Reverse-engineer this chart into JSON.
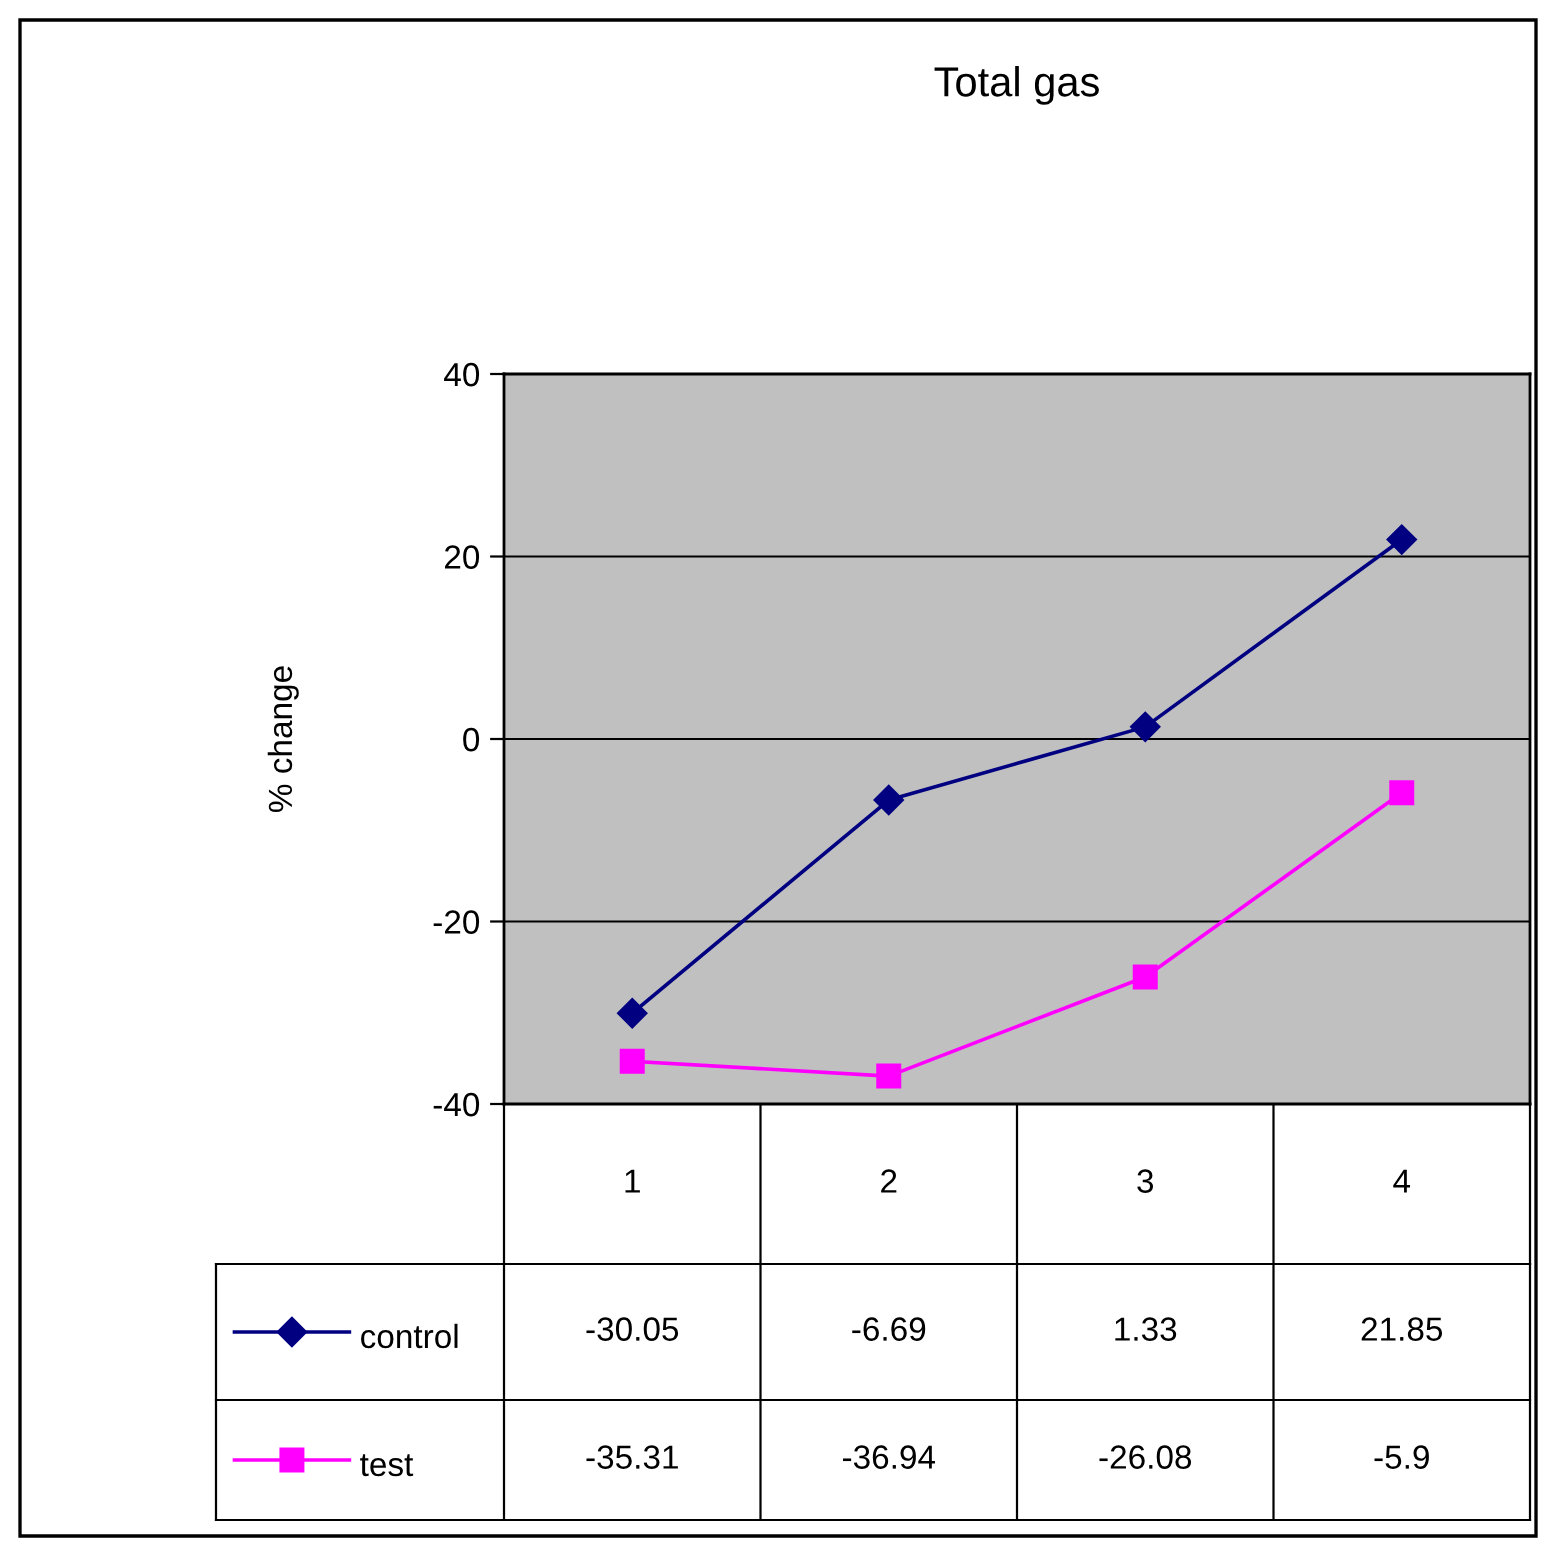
{
  "chart_data": {
    "type": "line",
    "title": "Total gas",
    "ylabel": "% change",
    "categories": [
      "1",
      "2",
      "3",
      "4"
    ],
    "series": [
      {
        "name": "control",
        "color": "#000080",
        "marker": "diamond",
        "values": [
          -30.05,
          -6.69,
          1.33,
          21.85
        ]
      },
      {
        "name": "test",
        "color": "#ff00ff",
        "marker": "square",
        "values": [
          -35.31,
          -36.94,
          -26.08,
          -5.9
        ]
      }
    ],
    "ylim": [
      -40,
      40
    ],
    "yticks": [
      -40,
      -20,
      0,
      20,
      40
    ],
    "grid": "y",
    "legend": "bottom",
    "data_labels": true
  }
}
